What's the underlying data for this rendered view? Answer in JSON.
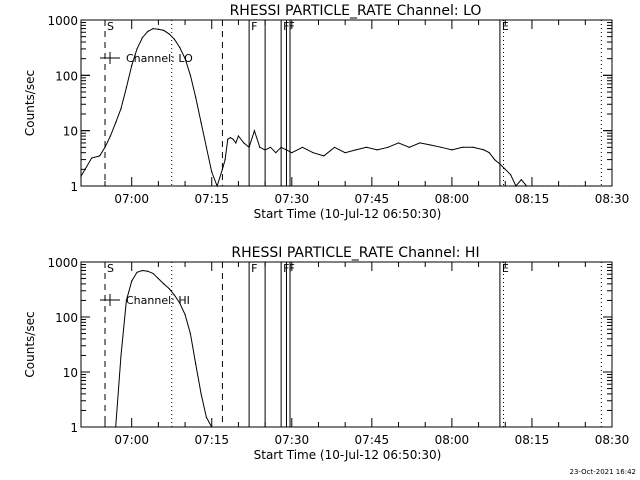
{
  "chart_data": [
    {
      "type": "line",
      "title": "RHESSI PARTICLE_RATE Channel: LO",
      "xlabel": "Start Time (10-Jul-12 06:50:30)",
      "ylabel": "Counts/sec",
      "y_scale": "log",
      "ylim": [
        1,
        1000
      ],
      "xlim": [
        "06:50:30",
        "08:30"
      ],
      "y_ticks": [
        "1",
        "10",
        "100",
        "1000"
      ],
      "x_ticks": [
        "07:00",
        "07:15",
        "07:30",
        "07:45",
        "08:00",
        "08:15",
        "08:30"
      ],
      "grid": false,
      "legend": {
        "placement": "top-left",
        "entries": [
          "Channel: LO"
        ]
      },
      "series": [
        {
          "name": "Channel: LO",
          "color": "#000000",
          "x": [
            "06:50:30",
            "06:52:30",
            "06:54:00",
            "06:55:00",
            "06:56:00",
            "06:57:00",
            "06:58:00",
            "06:59:00",
            "07:00:00",
            "07:01:00",
            "07:02:00",
            "07:03:00",
            "07:04:00",
            "07:05:00",
            "07:06:00",
            "07:07:00",
            "07:08:00",
            "07:09:00",
            "07:10:00",
            "07:11:00",
            "07:12:00",
            "07:13:00",
            "07:14:00",
            "07:15:00",
            "07:16:00",
            "07:17:00",
            "07:17:30",
            "07:18:00",
            "07:18:30",
            "07:19:00",
            "07:19:30",
            "07:20:00",
            "07:21:00",
            "07:22:00",
            "07:23:00",
            "07:24:00",
            "07:25:00",
            "07:26:00",
            "07:27:00",
            "07:28:00",
            "07:29:00",
            "07:30:00",
            "07:32:00",
            "07:34:00",
            "07:36:00",
            "07:38:00",
            "07:40:00",
            "07:42:00",
            "07:44:00",
            "07:46:00",
            "07:48:00",
            "07:50:00",
            "07:52:00",
            "07:54:00",
            "07:56:00",
            "07:58:00",
            "08:00:00",
            "08:02:00",
            "08:04:00",
            "08:06:00",
            "08:07:00",
            "08:08:00",
            "08:09:00",
            "08:10:00",
            "08:11:00",
            "08:12:00",
            "08:13:00",
            "08:14:00",
            "08:15:00",
            "08:16:00",
            "08:17:00",
            "08:18:00",
            "08:19:00",
            "08:20:00",
            "08:21:00",
            "08:22:00",
            "08:23:00",
            "08:24:00",
            "08:25:00",
            "08:26:00"
          ],
          "y": [
            1.5,
            3.2,
            3.5,
            5,
            8,
            14,
            25,
            60,
            150,
            300,
            480,
            620,
            700,
            680,
            650,
            560,
            450,
            320,
            200,
            100,
            40,
            14,
            5,
            1.8,
            1,
            2,
            3,
            7,
            7.5,
            7,
            6,
            8,
            6,
            5,
            10,
            5,
            4.5,
            5,
            4,
            5,
            4.5,
            4,
            5,
            4,
            3.5,
            5,
            4,
            4.5,
            5,
            4.5,
            5,
            6,
            5,
            6,
            5.5,
            5,
            4.5,
            5,
            5,
            4.5,
            4,
            3,
            2.5,
            2,
            1.6,
            1,
            1.3,
            1,
            1,
            1,
            1,
            1,
            1,
            1,
            1,
            1,
            1,
            1,
            1,
            1
          ]
        }
      ],
      "markers": [
        {
          "label": "S",
          "time": "06:55:00",
          "style": "dashed"
        },
        {
          "time": "07:07:30",
          "style": "dotted"
        },
        {
          "time": "07:17:00",
          "style": "dashed"
        },
        {
          "label": "F",
          "time": "07:22:00",
          "style": "solid"
        },
        {
          "time": "07:25:00",
          "style": "solid"
        },
        {
          "label": "F",
          "time": "07:28:00",
          "style": "solid"
        },
        {
          "label": "F",
          "time": "07:29:00",
          "style": "solid"
        },
        {
          "time": "07:29:40",
          "style": "solid"
        },
        {
          "label": "E",
          "time": "08:09:00",
          "style": "solid"
        },
        {
          "time": "08:09:40",
          "style": "dotted"
        },
        {
          "time": "08:28:00",
          "style": "dotted"
        }
      ]
    },
    {
      "type": "line",
      "title": "RHESSI PARTICLE_RATE Channel: HI",
      "xlabel": "Start Time (10-Jul-12 06:50:30)",
      "ylabel": "Counts/sec",
      "y_scale": "log",
      "ylim": [
        1,
        1000
      ],
      "xlim": [
        "06:50:30",
        "08:30"
      ],
      "y_ticks": [
        "1",
        "10",
        "100",
        "1000"
      ],
      "x_ticks": [
        "07:00",
        "07:15",
        "07:30",
        "07:45",
        "08:00",
        "08:15",
        "08:30"
      ],
      "grid": false,
      "legend": {
        "placement": "top-left",
        "entries": [
          "Channel: HI"
        ]
      },
      "series": [
        {
          "name": "Channel: HI",
          "color": "#000000",
          "x": [
            "06:57:00",
            "06:58:00",
            "06:59:00",
            "07:00:00",
            "07:01:00",
            "07:02:00",
            "07:03:00",
            "07:04:00",
            "07:05:00",
            "07:06:00",
            "07:07:00",
            "07:08:00",
            "07:09:00",
            "07:10:00",
            "07:11:00",
            "07:12:00",
            "07:13:00",
            "07:14:00",
            "07:15:00"
          ],
          "y": [
            1,
            20,
            200,
            450,
            650,
            700,
            680,
            620,
            500,
            400,
            330,
            250,
            180,
            110,
            50,
            14,
            4,
            1.5,
            1
          ]
        }
      ],
      "markers": [
        {
          "label": "S",
          "time": "06:55:00",
          "style": "dashed"
        },
        {
          "time": "07:07:30",
          "style": "dotted"
        },
        {
          "time": "07:17:00",
          "style": "dashed"
        },
        {
          "label": "F",
          "time": "07:22:00",
          "style": "solid"
        },
        {
          "time": "07:25:00",
          "style": "solid"
        },
        {
          "label": "F",
          "time": "07:28:00",
          "style": "solid"
        },
        {
          "label": "F",
          "time": "07:29:00",
          "style": "solid"
        },
        {
          "time": "07:29:40",
          "style": "solid"
        },
        {
          "label": "E",
          "time": "08:09:00",
          "style": "solid"
        },
        {
          "time": "08:09:40",
          "style": "dotted"
        },
        {
          "time": "08:28:00",
          "style": "dotted"
        }
      ]
    }
  ],
  "footer": {
    "timestamp": "23-Oct-2021 16:42"
  }
}
